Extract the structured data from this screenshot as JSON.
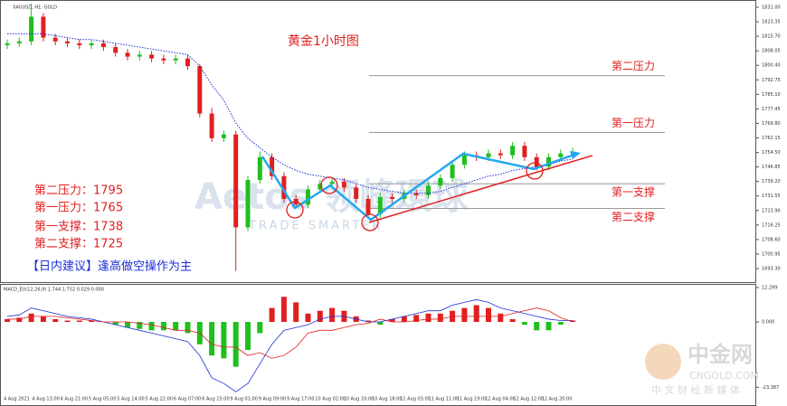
{
  "chart_data": {
    "type": "candlestick",
    "title": "XAUUSD, H1: GOLD",
    "heading": "黄金1小时图",
    "ylim": [
      1687.1,
      1833.4
    ],
    "yticks": [
      {
        "value": 1693.3,
        "label": "1693.30"
      },
      {
        "value": 1700.95,
        "label": "1700.95"
      },
      {
        "value": 1708.6,
        "label": "1708.60"
      },
      {
        "value": 1716.25,
        "label": "1716.25"
      },
      {
        "value": 1723.9,
        "label": "1723.90"
      },
      {
        "value": 1731.55,
        "label": "1731.55"
      },
      {
        "value": 1739.2,
        "label": "1739.20"
      },
      {
        "value": 1746.85,
        "label": "1746.85"
      },
      {
        "value": 1754.5,
        "label": "1754.50"
      },
      {
        "value": 1762.15,
        "label": "1762.15"
      },
      {
        "value": 1769.8,
        "label": "1769.80"
      },
      {
        "value": 1777.45,
        "label": "1777.45"
      },
      {
        "value": 1785.1,
        "label": "1785.10"
      },
      {
        "value": 1792.75,
        "label": "1792.75"
      },
      {
        "value": 1800.4,
        "label": "1800.40"
      },
      {
        "value": 1808.05,
        "label": "1808.05"
      },
      {
        "value": 1815.7,
        "label": "1815.70"
      },
      {
        "value": 1823.35,
        "label": "1823.35"
      },
      {
        "value": 1831,
        "label": "1831.00"
      }
    ],
    "xtick_labels": [
      "4 Aug 2021",
      "4 Aug 13:00",
      "4 Aug 21:00",
      "5 Aug 05:00",
      "5 Aug 14:00",
      "5 Aug 22:00",
      "6 Aug 07:00",
      "6 Aug 15:00",
      "9 Aug 01:00",
      "9 Aug 09:00",
      "9 Aug 17:00",
      "10 Aug 02:00",
      "10 Aug 10:00",
      "10 Aug 18:00",
      "11 Aug 03:00",
      "11 Aug 11:00",
      "11 Aug 19:00",
      "12 Aug 04:00",
      "12 Aug 12:00",
      "12 Aug 20:00"
    ],
    "up_color": "#1fbf1f",
    "down_color": "#e02020",
    "candles": {
      "open": [
        1811,
        1812,
        1813,
        1826,
        1815,
        1813,
        1812,
        1811,
        1812,
        1810,
        1807,
        1805,
        1806,
        1804,
        1803,
        1804,
        1800,
        1775,
        1762,
        1764,
        1715,
        1740,
        1752,
        1742,
        1730,
        1727,
        1735,
        1738,
        1739,
        1736,
        1730,
        1722,
        1731,
        1730,
        1733,
        1732,
        1737,
        1741,
        1748,
        1753,
        1752,
        1754,
        1753,
        1758,
        1752,
        1747,
        1752,
        1754
      ],
      "high": [
        1814,
        1815,
        1833,
        1828,
        1817,
        1815,
        1814,
        1814,
        1814,
        1812,
        1809,
        1808,
        1808,
        1806,
        1806,
        1806,
        1801,
        1778,
        1766,
        1766,
        1742,
        1755,
        1754,
        1744,
        1732,
        1737,
        1740,
        1741,
        1741,
        1738,
        1732,
        1733,
        1733,
        1735,
        1735,
        1739,
        1743,
        1750,
        1755,
        1755,
        1756,
        1756,
        1760,
        1760,
        1754,
        1754,
        1756,
        1757
      ],
      "low": [
        1809,
        1810,
        1811,
        1813,
        1811,
        1810,
        1809,
        1809,
        1808,
        1805,
        1803,
        1803,
        1802,
        1801,
        1801,
        1798,
        1773,
        1760,
        1760,
        1692,
        1713,
        1738,
        1740,
        1728,
        1725,
        1725,
        1733,
        1736,
        1734,
        1728,
        1720,
        1720,
        1728,
        1728,
        1730,
        1730,
        1735,
        1739,
        1746,
        1750,
        1750,
        1751,
        1751,
        1750,
        1745,
        1745,
        1750,
        1752
      ],
      "close": [
        1812,
        1813,
        1826,
        1815,
        1813,
        1812,
        1811,
        1812,
        1810,
        1807,
        1805,
        1806,
        1804,
        1803,
        1804,
        1800,
        1775,
        1762,
        1764,
        1715,
        1740,
        1752,
        1742,
        1730,
        1727,
        1735,
        1738,
        1739,
        1736,
        1730,
        1722,
        1731,
        1730,
        1733,
        1732,
        1737,
        1741,
        1748,
        1753,
        1752,
        1754,
        1753,
        1758,
        1752,
        1747,
        1752,
        1754,
        1755
      ]
    },
    "ma": {
      "color": "#1c2fd8",
      "values": [
        1817,
        1817,
        1817,
        1817,
        1816,
        1815,
        1814,
        1814,
        1813,
        1812,
        1811,
        1810,
        1809,
        1808,
        1807,
        1806,
        1800,
        1790,
        1782,
        1770,
        1762,
        1757,
        1752,
        1748,
        1745,
        1743,
        1742,
        1741,
        1740,
        1738,
        1736,
        1735,
        1734,
        1733,
        1733,
        1733,
        1734,
        1736,
        1738,
        1740,
        1742,
        1743,
        1745,
        1746,
        1747,
        1748,
        1750,
        1751
      ]
    },
    "levels": [
      {
        "label": "第二压力",
        "value": 1795
      },
      {
        "label": "第一压力",
        "value": 1765
      },
      {
        "label": "第一支撑",
        "value": 1738
      },
      {
        "label": "第二支撑",
        "value": 1725
      }
    ],
    "notes": [
      "第二压力：1795",
      "第一压力：1765",
      "第一支撑：1738",
      "第二支撑：1725"
    ],
    "advice": "【日内建议】逢高做空操作为主",
    "macd": {
      "label": "MACD_EU(12,26,9) 1.744 1.752 0.029 0.000",
      "ylim": [
        -29.1,
        12.95
      ],
      "yticks": [
        12.299,
        {
          "value": 0,
          "label": "0.000"
        },
        -23.387
      ],
      "histogram": [
        1,
        1.5,
        3,
        2,
        1,
        0.5,
        0.5,
        0.5,
        0,
        -1,
        -2,
        -2.5,
        -3,
        -3,
        -3,
        -4,
        -8,
        -12,
        -13,
        -16,
        -10,
        -4,
        5,
        9,
        7,
        3,
        4,
        5,
        4,
        2,
        0.5,
        -1,
        1,
        2,
        2.5,
        3,
        3,
        4,
        5,
        6,
        5,
        3,
        1,
        -1,
        -3,
        -3,
        -1,
        0.5
      ],
      "macd_color": "#1c2fd8",
      "macd_line": [
        2,
        2.5,
        5,
        4,
        3,
        2,
        1.5,
        1,
        0,
        -1,
        -2,
        -3,
        -4,
        -5,
        -6,
        -7,
        -12,
        -20,
        -22,
        -25,
        -22,
        -15,
        -8,
        -3,
        -2,
        -1,
        1,
        2,
        2,
        1,
        0,
        0,
        1,
        2,
        3,
        4,
        4,
        6,
        7,
        8,
        7,
        5,
        4,
        3,
        2,
        1,
        0.5,
        0.5
      ],
      "signal_color": "#e02020",
      "signal_line": [
        1,
        1,
        2,
        2,
        2,
        1.5,
        1,
        0.5,
        0,
        0,
        0,
        -0.5,
        -1,
        -2,
        -3,
        -3,
        -4,
        -8,
        -9,
        -9,
        -12,
        -11,
        -13,
        -12,
        -9,
        -4,
        -3,
        -3,
        -2,
        -1,
        -0.5,
        1,
        0,
        0,
        0.5,
        1,
        1,
        2,
        2,
        2,
        2,
        2,
        3,
        4,
        5,
        4,
        1.5,
        0
      ]
    },
    "watermark": {
      "brand": "Aetos 领峰環球",
      "slogan": "TRADE SMARTER",
      "site_name": "中金网",
      "site_url": "CNGOLD.COM",
      "site_tag": "中 文 财 经 新 媒 体"
    }
  }
}
